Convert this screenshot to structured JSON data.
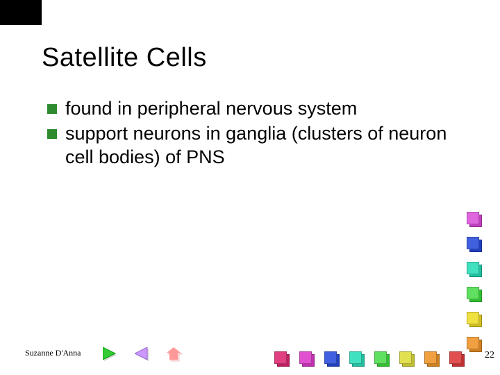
{
  "title": "Satellite Cells",
  "title_fontsize": 38,
  "bullets": [
    "found in peripheral nervous system",
    "support neurons in ganglia (clusters of neuron cell bodies) of PNS"
  ],
  "bullet_marker_color": "#2e8b2e",
  "body_fontsize": 27,
  "author": "Suzanne D'Anna",
  "page_number": "22",
  "nav": {
    "next": {
      "fill": "#33cc33",
      "stroke": "#009900"
    },
    "prev": {
      "fill": "#cc99ff",
      "stroke": "#9966cc"
    },
    "home": {
      "fill": "#ff9999",
      "stroke": "#cc6666"
    }
  },
  "deco_right_colors": [
    [
      "#e066e0",
      "#c040c0"
    ],
    [
      "#4060e0",
      "#2040c0"
    ],
    [
      "#40e0c0",
      "#20c0a0"
    ],
    [
      "#60e060",
      "#30c030"
    ],
    [
      "#f0e040",
      "#d0c020"
    ],
    [
      "#f0a040",
      "#d08020"
    ]
  ],
  "deco_bottom_colors": [
    [
      "#e04080",
      "#c02060"
    ],
    [
      "#e050d0",
      "#c030b0"
    ],
    [
      "#4060e0",
      "#2040c0"
    ],
    [
      "#40e0c0",
      "#20c0a0"
    ],
    [
      "#60e060",
      "#30c030"
    ],
    [
      "#e0e050",
      "#c0c030"
    ],
    [
      "#f0a040",
      "#d08020"
    ],
    [
      "#e05050",
      "#c03030"
    ]
  ],
  "background_color": "#ffffff"
}
